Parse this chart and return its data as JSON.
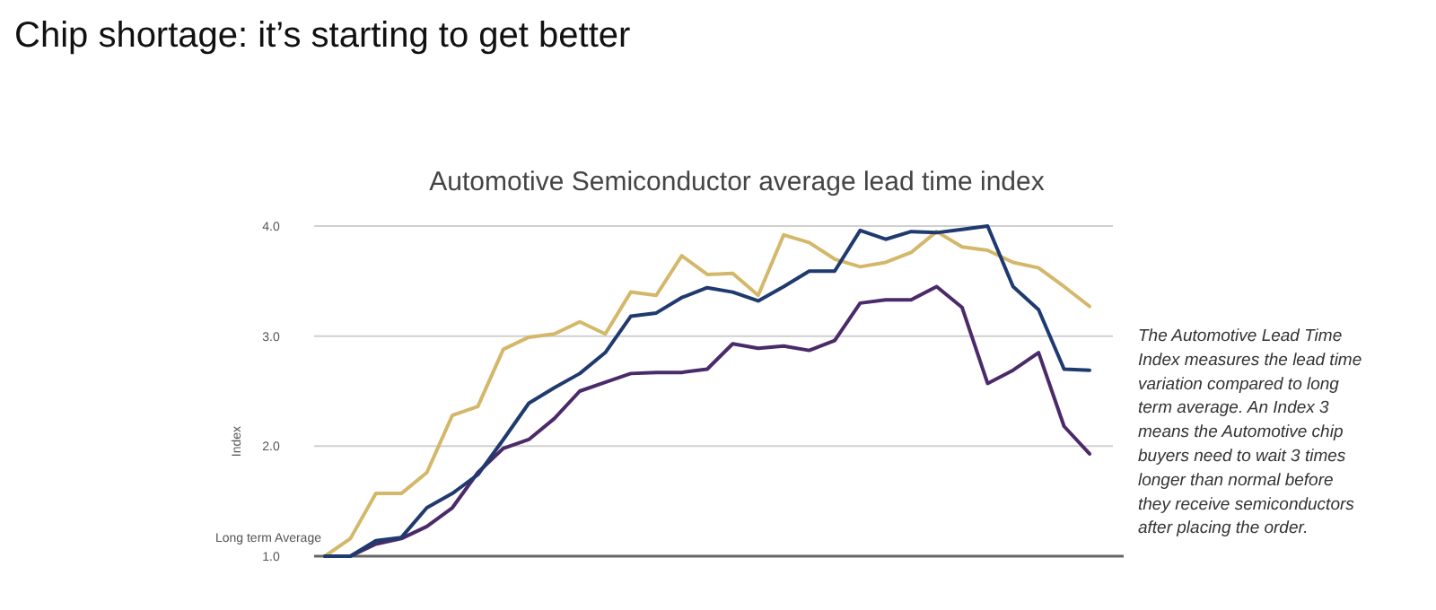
{
  "chart_data": {
    "type": "line",
    "title": "Chip shortage: it’s starting to get better",
    "subtitle": "Automotive Semiconductor average lead time index",
    "ylabel": "Index",
    "categories": [
      null,
      null,
      null,
      null,
      null,
      null,
      null,
      null,
      null,
      null,
      null,
      null,
      null,
      null,
      null,
      null,
      null,
      null,
      null,
      null,
      null,
      null,
      null,
      null,
      null,
      null,
      null,
      null,
      null,
      null,
      null
    ],
    "series": [
      {
        "color": "#d4b86a",
        "values": [
          1.0,
          1.16,
          1.57,
          1.57,
          1.76,
          2.28,
          2.36,
          2.88,
          2.99,
          3.02,
          3.13,
          3.02,
          3.4,
          3.37,
          3.73,
          3.56,
          3.57,
          3.37,
          3.92,
          3.85,
          3.7,
          3.63,
          3.67,
          3.76,
          3.95,
          3.81,
          3.78,
          3.67,
          3.62,
          3.45,
          3.27
        ]
      },
      {
        "color": "#4b2a6a",
        "values": [
          1.0,
          1.0,
          1.11,
          1.16,
          1.27,
          1.44,
          1.76,
          1.98,
          2.06,
          2.25,
          2.5,
          2.58,
          2.66,
          2.67,
          2.67,
          2.7,
          2.93,
          2.89,
          2.91,
          2.87,
          2.96,
          3.3,
          3.33,
          3.33,
          3.45,
          3.26,
          2.57,
          2.69,
          2.85,
          2.18,
          1.93
        ]
      },
      {
        "color": "#1f3a6e",
        "values": [
          1.0,
          1.0,
          1.14,
          1.17,
          1.44,
          1.57,
          1.74,
          2.06,
          2.39,
          2.53,
          2.66,
          2.85,
          3.18,
          3.21,
          3.35,
          3.44,
          3.4,
          3.32,
          3.45,
          3.59,
          3.59,
          3.96,
          3.88,
          3.95,
          3.94,
          3.97,
          4.0,
          3.45,
          3.24,
          2.7,
          2.69
        ]
      }
    ],
    "ylim": [
      1,
      4
    ],
    "yticks": [
      {
        "value": 1,
        "label": "1.0"
      },
      {
        "value": 2,
        "label": "2.0"
      },
      {
        "value": 3,
        "label": "3.0"
      },
      {
        "value": 4,
        "label": "4.0"
      }
    ],
    "grid": "y",
    "ref_lines": [
      {
        "axis": "y",
        "value": 1,
        "label": "Long term Average",
        "color": "#666666"
      }
    ],
    "annotations": [
      "The Automotive Lead Time Index measures the lead time variation compared to long term average. An Index 3 means the Automotive chip buyers need to wait 3 times longer than normal before they receive semiconductors after placing the order."
    ],
    "marker": "none",
    "line_style": "solid"
  }
}
